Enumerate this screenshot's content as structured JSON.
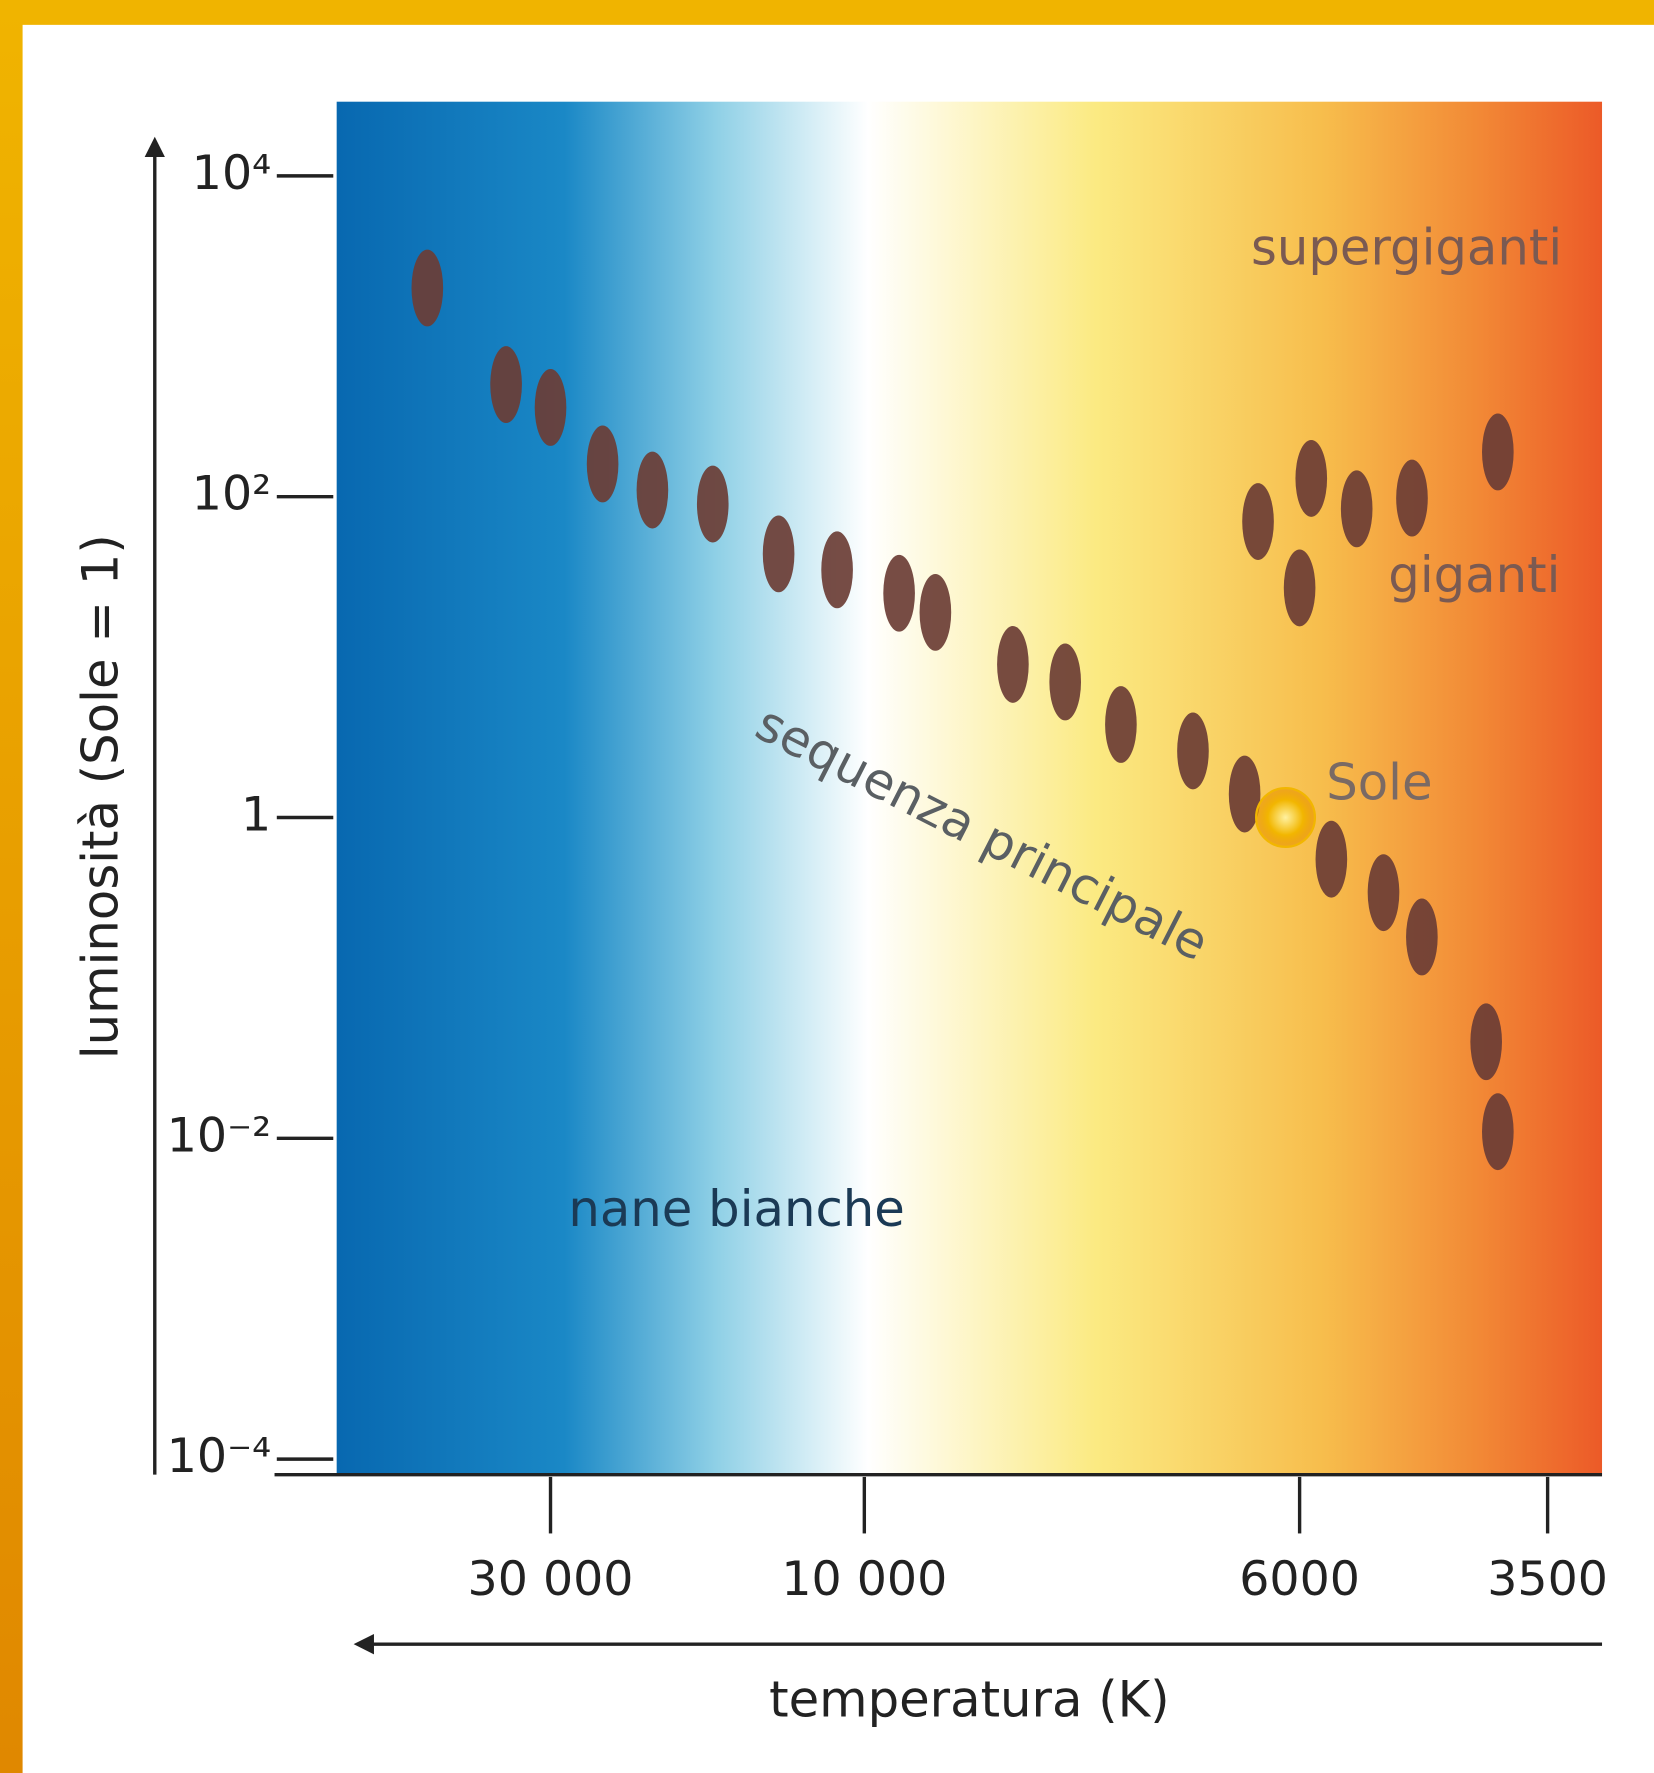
{
  "chart_data": {
    "type": "scatter",
    "xlabel": "temperatura (K)",
    "ylabel": "luminosità (Sole = 1)",
    "xscale": "log",
    "yscale": "log",
    "xlim": [
      63000,
      3100
    ],
    "ylim": [
      8e-05,
      29000
    ],
    "xticks": [
      {
        "value": 30000,
        "label": "30 000"
      },
      {
        "value": 10000,
        "label": "10 000"
      },
      6000,
      3500
    ],
    "yticks": [
      {
        "value": 10000,
        "label": "10⁴"
      },
      {
        "value": 100,
        "label": "10²"
      },
      1,
      {
        "value": 0.01,
        "label": "10⁻²"
      },
      {
        "value": 0.0001,
        "label": "10⁻⁴"
      }
    ],
    "grid": false,
    "color": "#6b3d35",
    "x": [
      46000,
      35000,
      30000,
      25000,
      21000,
      17000,
      13500,
      11000,
      9600,
      9200,
      8400,
      7900,
      7400,
      6800,
      6400,
      5600,
      5000,
      4600,
      4000,
      3900,
      6300,
      5850,
      5300,
      4700,
      3900,
      6000
    ],
    "y": [
      2000,
      500,
      360,
      160,
      110,
      90,
      44,
      35,
      25,
      19,
      9,
      7,
      3.8,
      2.6,
      1.4,
      0.55,
      0.34,
      0.18,
      0.04,
      0.011,
      70,
      130,
      84,
      98,
      190,
      27
    ],
    "highlight": {
      "label": "Sole",
      "x": 6100,
      "y": 1,
      "color": "#f2b600"
    },
    "annotations": [
      "supergiganti",
      "giganti",
      "sequenza principale",
      "nane bianche"
    ]
  }
}
